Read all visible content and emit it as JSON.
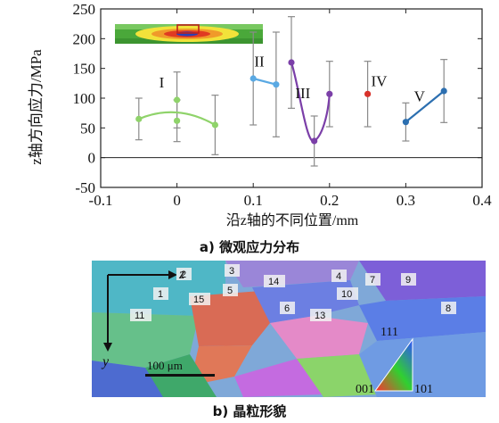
{
  "chart_data": {
    "type": "line",
    "xlabel": "沿z轴的不同位置/mm",
    "ylabel": "z轴方向应力/MPa",
    "xlim": [
      -0.1,
      0.4
    ],
    "ylim": [
      -50,
      250
    ],
    "xticks": [
      -0.1,
      0.0,
      0.1,
      0.2,
      0.3,
      0.4
    ],
    "yticks": [
      -50,
      0,
      50,
      100,
      150,
      200,
      250
    ],
    "grid": false,
    "series": [
      {
        "name": "I",
        "color": "#8fd36a",
        "points": [
          {
            "x": -0.05,
            "y": 65,
            "err": 35
          },
          {
            "x": 0.0,
            "y": 62,
            "err": 35
          },
          {
            "x": 0.0,
            "y": 97,
            "err": 47
          },
          {
            "x": 0.05,
            "y": 55,
            "err": 50
          }
        ]
      },
      {
        "name": "II",
        "color": "#5aa9e3",
        "points": [
          {
            "x": 0.1,
            "y": 133,
            "err": 78
          },
          {
            "x": 0.13,
            "y": 123,
            "err": 88
          }
        ]
      },
      {
        "name": "III",
        "color": "#7b3fa8",
        "points": [
          {
            "x": 0.15,
            "y": 160,
            "err": 77
          },
          {
            "x": 0.18,
            "y": 28,
            "err": 42
          },
          {
            "x": 0.2,
            "y": 107,
            "err": 55
          }
        ]
      },
      {
        "name": "IV",
        "color": "#d8322b",
        "points": [
          {
            "x": 0.25,
            "y": 107,
            "err": 55
          }
        ]
      },
      {
        "name": "V",
        "color": "#2c6fb0",
        "points": [
          {
            "x": 0.3,
            "y": 60,
            "err": 32
          },
          {
            "x": 0.35,
            "y": 112,
            "err": 53
          }
        ]
      }
    ]
  },
  "captions": {
    "a": "a) 微观应力分布",
    "b": "b) 晶粒形貌"
  },
  "micrograph": {
    "scale_bar": "100 μm",
    "axis_z": "z",
    "axis_y": "y",
    "ipf_labels": {
      "top": "111",
      "left": "001",
      "right": "101"
    },
    "grain_labels": [
      "1",
      "2",
      "3",
      "4",
      "5",
      "6",
      "7",
      "8",
      "9",
      "10",
      "11",
      "13",
      "14",
      "15"
    ]
  }
}
